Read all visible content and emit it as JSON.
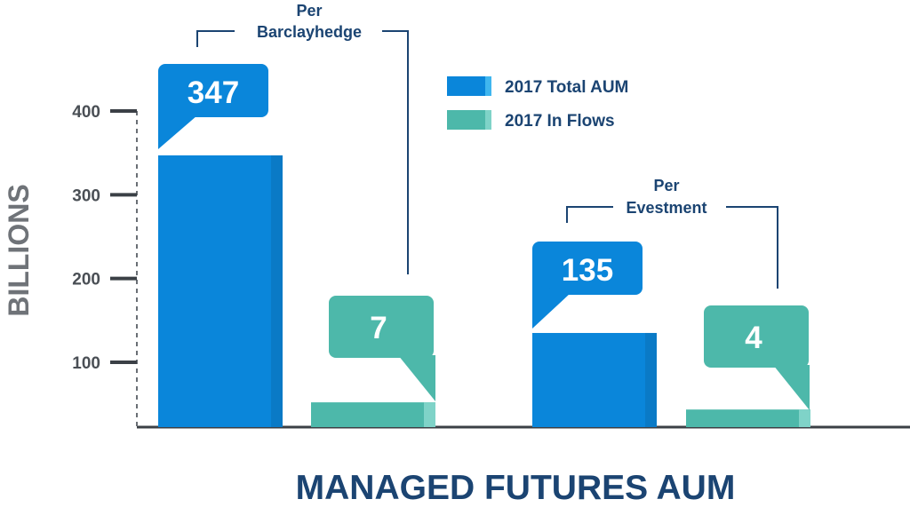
{
  "chart_data": {
    "type": "bar",
    "title": "MANAGED FUTURES AUM",
    "ylabel": "BILLIONS",
    "xlabel": "",
    "ylim": [
      20,
      400
    ],
    "yticks": [
      100,
      200,
      300,
      400
    ],
    "yticks_labels": [
      "100",
      "200",
      "300",
      "400"
    ],
    "legend_placement": "top-center",
    "groups": [
      {
        "source_label": [
          "Per",
          "Barclayhedge"
        ]
      },
      {
        "source_label": [
          "Per",
          "Evestment"
        ]
      }
    ],
    "series": [
      {
        "name": "2017 Total AUM",
        "color": "#0a86da",
        "shade": "#0a7ac6",
        "values": [
          347,
          135
        ],
        "labels": [
          "347",
          "135"
        ]
      },
      {
        "name": "2017 In Flows",
        "color": "#4db8aa",
        "shade": "#3fa89b",
        "values": [
          7,
          4
        ],
        "labels": [
          "7",
          "4"
        ]
      }
    ]
  },
  "colors": {
    "axis": "#3b4046",
    "dashed_axis": "#6a6f75",
    "bracket": "#1b4472"
  }
}
